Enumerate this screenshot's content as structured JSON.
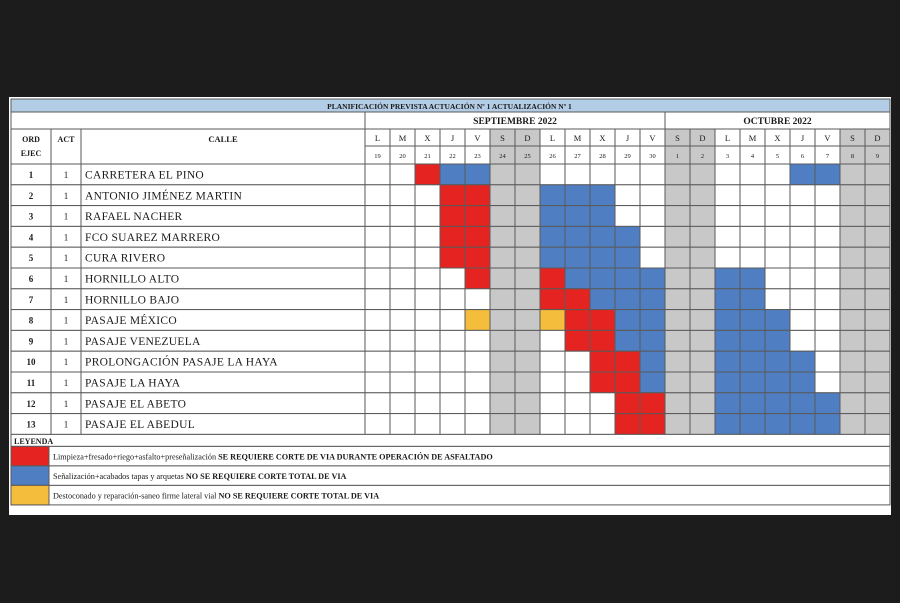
{
  "title": "PLANIFICACIÓN PREVISTA ACTUACIÓN Nº 1 ACTUALIZACIÓN Nº 1",
  "months": [
    {
      "label": "SEPTIEMBRE 2022",
      "days": 12
    },
    {
      "label": "OCTUBRE 2022",
      "days": 9
    }
  ],
  "headers": {
    "ord": "ORD EJEC",
    "act": "ACT",
    "calle": "CALLE"
  },
  "day_letters": [
    "L",
    "M",
    "X",
    "J",
    "V",
    "S",
    "D",
    "L",
    "M",
    "X",
    "J",
    "V",
    "S",
    "D",
    "L",
    "M",
    "X",
    "J",
    "V",
    "S",
    "D"
  ],
  "day_numbers": [
    "19",
    "20",
    "21",
    "22",
    "23",
    "24",
    "25",
    "26",
    "27",
    "28",
    "29",
    "30",
    "1",
    "2",
    "3",
    "4",
    "5",
    "6",
    "7",
    "8",
    "9"
  ],
  "weekend_columns": [
    5,
    6,
    12,
    13,
    19,
    20
  ],
  "colors": {
    "red": "#e52421",
    "blue": "#4f7ec2",
    "yellow": "#f5bd3c",
    "weekend": "#c8c8c8",
    "title_bg": "#b4cde6"
  },
  "rows": [
    {
      "ord": "1",
      "act": "1",
      "calle": "CARRETERA EL PINO",
      "cells": {
        "2": "R",
        "3": "B",
        "4": "B",
        "17": "B",
        "18": "B"
      }
    },
    {
      "ord": "2",
      "act": "1",
      "calle": "ANTONIO JIMÉNEZ MARTIN",
      "cells": {
        "3": "R",
        "4": "R",
        "7": "B",
        "8": "B",
        "9": "B"
      }
    },
    {
      "ord": "3",
      "act": "1",
      "calle": "RAFAEL NACHER",
      "cells": {
        "3": "R",
        "4": "R",
        "7": "B",
        "8": "B",
        "9": "B"
      }
    },
    {
      "ord": "4",
      "act": "1",
      "calle": "FCO SUAREZ MARRERO",
      "cells": {
        "3": "R",
        "4": "R",
        "7": "B",
        "8": "B",
        "9": "B",
        "10": "B"
      }
    },
    {
      "ord": "5",
      "act": "1",
      "calle": "CURA RIVERO",
      "cells": {
        "3": "R",
        "4": "R",
        "7": "B",
        "8": "B",
        "9": "B",
        "10": "B"
      }
    },
    {
      "ord": "6",
      "act": "1",
      "calle": "HORNILLO ALTO",
      "cells": {
        "4": "R",
        "7": "R",
        "8": "B",
        "9": "B",
        "10": "B",
        "11": "B",
        "14": "B",
        "15": "B"
      }
    },
    {
      "ord": "7",
      "act": "1",
      "calle": "HORNILLO BAJO",
      "cells": {
        "7": "R",
        "8": "R",
        "9": "B",
        "10": "B",
        "11": "B",
        "14": "B",
        "15": "B"
      }
    },
    {
      "ord": "8",
      "act": "1",
      "calle": "PASAJE MÉXICO",
      "cells": {
        "4": "Y",
        "7": "Y",
        "8": "R",
        "9": "R",
        "10": "B",
        "11": "B",
        "14": "B",
        "15": "B",
        "16": "B"
      }
    },
    {
      "ord": "9",
      "act": "1",
      "calle": "PASAJE VENEZUELA",
      "cells": {
        "8": "R",
        "9": "R",
        "10": "B",
        "11": "B",
        "14": "B",
        "15": "B",
        "16": "B"
      }
    },
    {
      "ord": "10",
      "act": "1",
      "calle": "PROLONGACIÓN PASAJE LA HAYA",
      "cells": {
        "9": "R",
        "10": "R",
        "11": "B",
        "14": "B",
        "15": "B",
        "16": "B",
        "17": "B"
      }
    },
    {
      "ord": "11",
      "act": "1",
      "calle": "PASAJE LA HAYA",
      "cells": {
        "9": "R",
        "10": "R",
        "11": "B",
        "14": "B",
        "15": "B",
        "16": "B",
        "17": "B"
      }
    },
    {
      "ord": "12",
      "act": "1",
      "calle": "PASAJE EL ABETO",
      "cells": {
        "10": "R",
        "11": "R",
        "14": "B",
        "15": "B",
        "16": "B",
        "17": "B",
        "18": "B"
      }
    },
    {
      "ord": "13",
      "act": "1",
      "calle": "PASAJE EL ABEDUL",
      "cells": {
        "10": "R",
        "11": "R",
        "14": "B",
        "15": "B",
        "16": "B",
        "17": "B",
        "18": "B"
      }
    }
  ],
  "legend": {
    "title": "LEYENDA",
    "items": [
      {
        "color": "red",
        "text": "Limpieza+fresado+riego+asfalto+preseñalización",
        "bold": "SE REQUIERE CORTE DE VIA DURANTE OPERACIÓN DE ASFALTADO"
      },
      {
        "color": "blue",
        "text": "Señalización+acabados tapas y arquetas",
        "bold": "NO SE REQUIERE CORTE TOTAL DE VIA"
      },
      {
        "color": "yellow",
        "text": "Destoconado y reparación-saneo firme lateral vial",
        "bold": "NO SE REQUIERE CORTE TOTAL DE VIA"
      }
    ]
  }
}
